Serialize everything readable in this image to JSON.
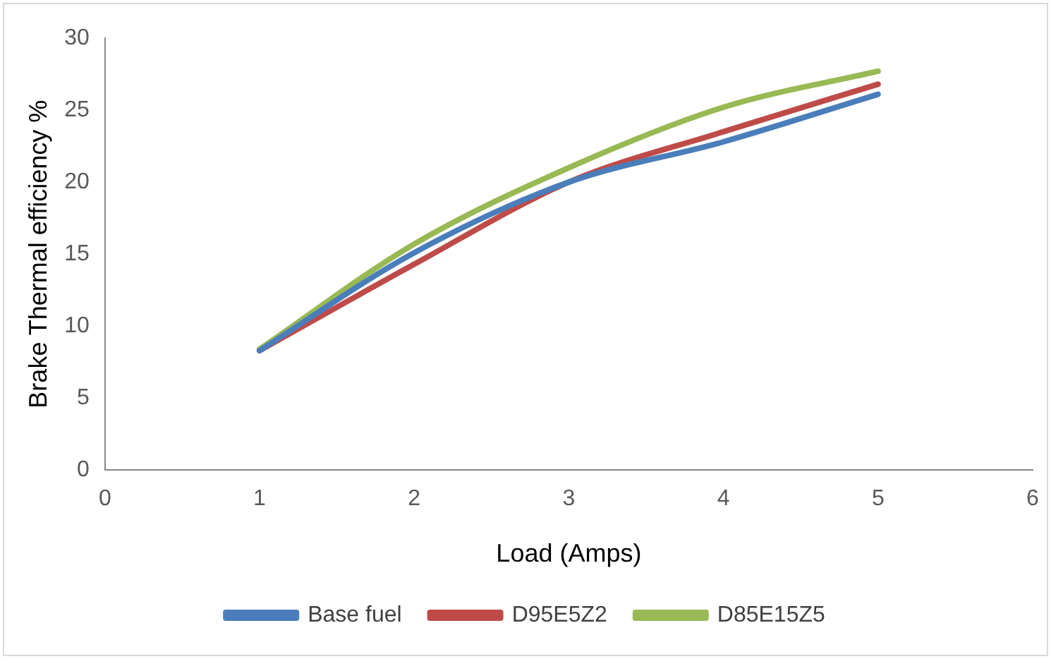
{
  "chart_data": {
    "type": "line",
    "xlabel": "Load (Amps)",
    "ylabel": "Brake Thermal efficiency %",
    "x": [
      1,
      2,
      3,
      4,
      5
    ],
    "series": [
      {
        "name": "Base fuel",
        "color": "#4a7ebb",
        "values": [
          8.3,
          15.1,
          20,
          22.8,
          26.1
        ]
      },
      {
        "name": "D95E5Z2",
        "color": "#be4b48",
        "values": [
          8.3,
          14.3,
          20,
          23.5,
          26.8
        ]
      },
      {
        "name": "D85E15Z5",
        "color": "#98b954",
        "values": [
          8.4,
          15.7,
          21,
          25.2,
          27.7
        ]
      }
    ],
    "xlim": [
      0,
      6
    ],
    "xticks": [
      0,
      1,
      2,
      3,
      4,
      5,
      6
    ],
    "ylim": [
      0,
      30
    ],
    "yticks": [
      0,
      5,
      10,
      15,
      20,
      25,
      30
    ],
    "grid": false,
    "legend": "bottom",
    "marker": "none",
    "line_style": "solid"
  }
}
